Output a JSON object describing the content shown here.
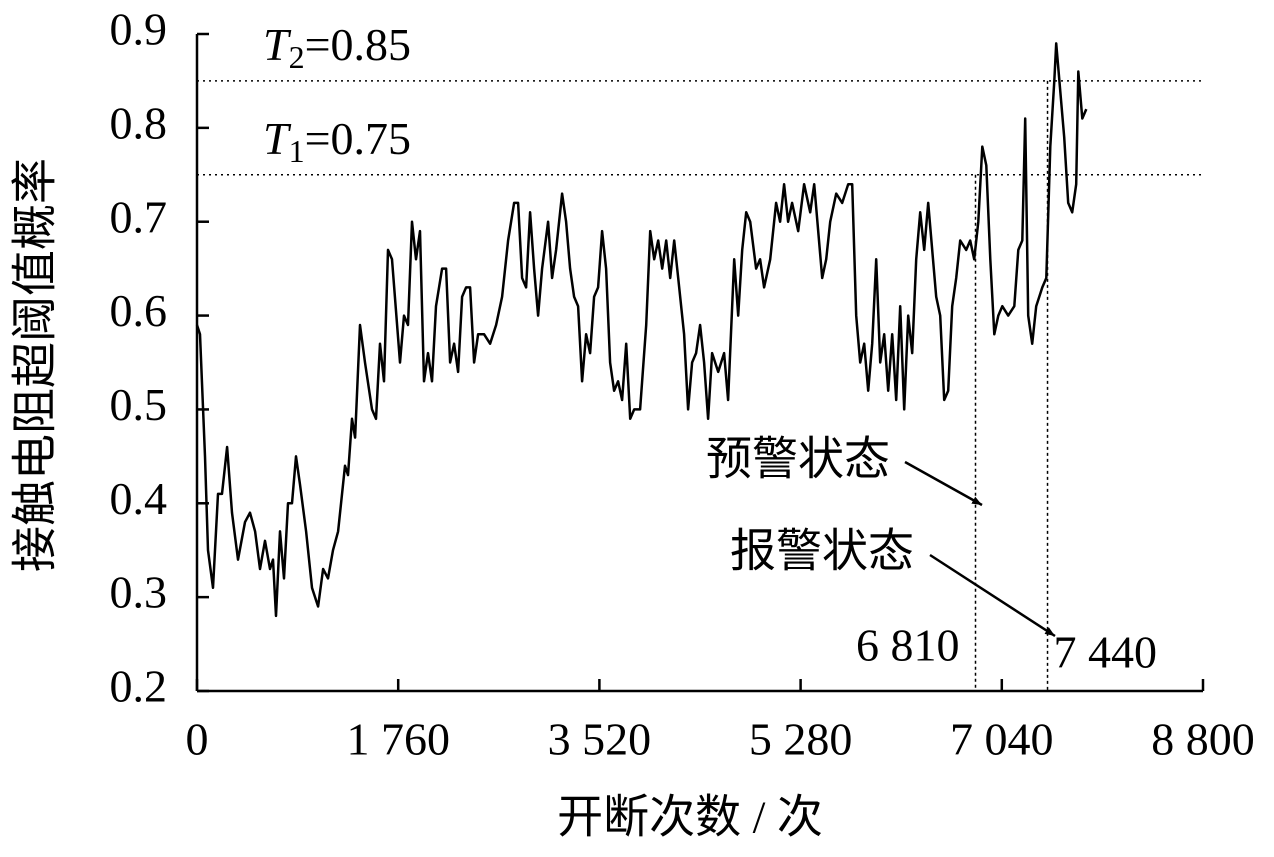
{
  "chart_data": {
    "type": "line",
    "x_label": "开断次数 / 次",
    "y_label": "接触电阻超阈值概率",
    "xlim": [
      0,
      8800
    ],
    "ylim": [
      0.2,
      0.9
    ],
    "xticks": [
      0,
      {
        "value": 1760,
        "label": "1 760"
      },
      {
        "value": 3520,
        "label": "3 520"
      },
      {
        "value": 5280,
        "label": "5 280"
      },
      {
        "value": 7040,
        "label": "7 040"
      },
      {
        "value": 8800,
        "label": "8 800"
      }
    ],
    "yticks": [
      0.2,
      0.3,
      0.4,
      0.5,
      0.6,
      0.7,
      0.8,
      0.9
    ],
    "x": [
      0,
      26,
      70,
      96,
      140,
      184,
      219,
      263,
      306,
      359,
      420,
      464,
      508,
      551,
      595,
      639,
      665,
      691,
      726,
      761,
      796,
      831,
      866,
      901,
      954,
      1006,
      1059,
      1103,
      1146,
      1190,
      1234,
      1295,
      1321,
      1356,
      1383,
      1426,
      1470,
      1531,
      1566,
      1601,
      1636,
      1671,
      1706,
      1776,
      1811,
      1846,
      1881,
      1916,
      1951,
      1986,
      2021,
      2056,
      2091,
      2144,
      2179,
      2214,
      2249,
      2284,
      2319,
      2354,
      2389,
      2424,
      2459,
      2511,
      2564,
      2616,
      2669,
      2721,
      2774,
      2809,
      2844,
      2879,
      2914,
      2949,
      2984,
      3019,
      3071,
      3106,
      3141,
      3194,
      3229,
      3264,
      3299,
      3334,
      3369,
      3404,
      3439,
      3474,
      3509,
      3544,
      3579,
      3614,
      3649,
      3684,
      3719,
      3754,
      3789,
      3824,
      3876,
      3929,
      3964,
      3999,
      4034,
      4069,
      4104,
      4139,
      4174,
      4209,
      4261,
      4296,
      4331,
      4366,
      4401,
      4436,
      4471,
      4506,
      4559,
      4611,
      4646,
      4699,
      4734,
      4769,
      4804,
      4839,
      4891,
      4926,
      4961,
      5014,
      5066,
      5101,
      5136,
      5171,
      5206,
      5259,
      5311,
      5364,
      5399,
      5434,
      5469,
      5504,
      5539,
      5591,
      5644,
      5696,
      5731,
      5766,
      5801,
      5836,
      5871,
      5906,
      5941,
      5976,
      6011,
      6046,
      6081,
      6116,
      6151,
      6186,
      6221,
      6256,
      6291,
      6326,
      6361,
      6396,
      6431,
      6466,
      6501,
      6536,
      6571,
      6606,
      6641,
      6676,
      6729,
      6764,
      6799,
      6834,
      6869,
      6904,
      6939,
      6974,
      7009,
      7044,
      7096,
      7149,
      7184,
      7219,
      7245,
      7271,
      7306,
      7341,
      7394,
      7429,
      7464,
      7499,
      7516,
      7551,
      7586,
      7621,
      7656,
      7691,
      7709,
      7744,
      7779
    ],
    "series": [
      {
        "color": "#000000",
        "values": [
          0.59,
          0.58,
          0.45,
          0.35,
          0.31,
          0.41,
          0.41,
          0.46,
          0.39,
          0.34,
          0.38,
          0.39,
          0.37,
          0.33,
          0.36,
          0.33,
          0.34,
          0.28,
          0.37,
          0.32,
          0.4,
          0.4,
          0.45,
          0.42,
          0.37,
          0.31,
          0.29,
          0.33,
          0.32,
          0.35,
          0.37,
          0.44,
          0.43,
          0.49,
          0.47,
          0.59,
          0.55,
          0.5,
          0.49,
          0.57,
          0.53,
          0.67,
          0.66,
          0.55,
          0.6,
          0.59,
          0.7,
          0.66,
          0.69,
          0.53,
          0.56,
          0.53,
          0.61,
          0.65,
          0.65,
          0.55,
          0.57,
          0.54,
          0.62,
          0.63,
          0.63,
          0.55,
          0.58,
          0.58,
          0.57,
          0.59,
          0.62,
          0.68,
          0.72,
          0.72,
          0.64,
          0.63,
          0.71,
          0.65,
          0.6,
          0.65,
          0.7,
          0.64,
          0.67,
          0.73,
          0.7,
          0.65,
          0.62,
          0.61,
          0.53,
          0.58,
          0.56,
          0.62,
          0.63,
          0.69,
          0.65,
          0.55,
          0.52,
          0.53,
          0.51,
          0.57,
          0.49,
          0.5,
          0.5,
          0.59,
          0.69,
          0.66,
          0.68,
          0.65,
          0.68,
          0.64,
          0.68,
          0.64,
          0.58,
          0.5,
          0.55,
          0.56,
          0.59,
          0.55,
          0.49,
          0.56,
          0.54,
          0.56,
          0.51,
          0.66,
          0.6,
          0.67,
          0.71,
          0.7,
          0.65,
          0.66,
          0.63,
          0.66,
          0.72,
          0.7,
          0.74,
          0.7,
          0.72,
          0.69,
          0.74,
          0.71,
          0.74,
          0.69,
          0.64,
          0.66,
          0.7,
          0.73,
          0.72,
          0.74,
          0.74,
          0.6,
          0.55,
          0.57,
          0.52,
          0.57,
          0.66,
          0.55,
          0.58,
          0.52,
          0.58,
          0.51,
          0.61,
          0.5,
          0.6,
          0.56,
          0.66,
          0.71,
          0.67,
          0.72,
          0.67,
          0.62,
          0.6,
          0.51,
          0.52,
          0.61,
          0.64,
          0.68,
          0.67,
          0.68,
          0.66,
          0.7,
          0.78,
          0.76,
          0.66,
          0.58,
          0.6,
          0.61,
          0.6,
          0.61,
          0.67,
          0.68,
          0.81,
          0.6,
          0.57,
          0.61,
          0.63,
          0.64,
          0.78,
          0.85,
          0.89,
          0.84,
          0.79,
          0.72,
          0.71,
          0.74,
          0.86,
          0.81,
          0.82
        ]
      }
    ],
    "thresholds": [
      {
        "symbol": "T",
        "sub": "2",
        "label": "=0.85",
        "value": 0.85
      },
      {
        "symbol": "T",
        "sub": "1",
        "label": "=0.75",
        "value": 0.75
      }
    ],
    "events": [
      {
        "text": "预警状态",
        "x": 6810,
        "x_label": "6 810",
        "threshold": 0.75
      },
      {
        "text": "报警状态",
        "x": 7440,
        "x_label": "7 440",
        "threshold": 0.85
      }
    ]
  }
}
